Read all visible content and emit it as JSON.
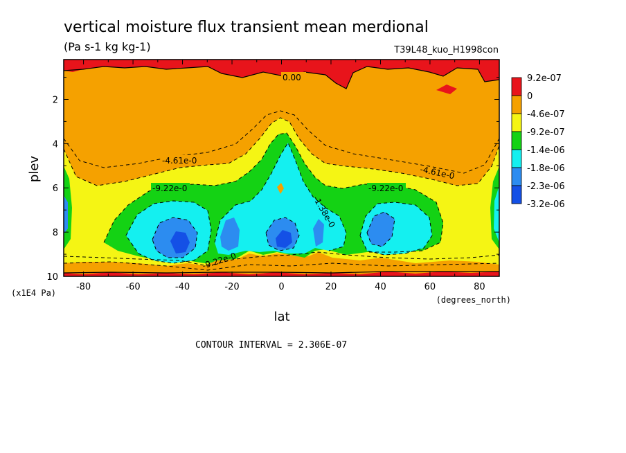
{
  "chart_data": {
    "type": "contour",
    "title": "vertical moisture flux transient mean merdional",
    "units": "(Pa s-1 kg kg-1)",
    "run_label": "T39L48_kuo_H1998con",
    "xlabel": "lat",
    "x_units_label": "(degrees_north)",
    "ylabel": "plev",
    "y_units_label": "(x1E4 Pa)",
    "xlim": [
      -88,
      88
    ],
    "ylim": [
      10,
      0.2
    ],
    "x_ticks": [
      "-80",
      "-60",
      "-40",
      "-20",
      "0",
      "20",
      "40",
      "60",
      "80"
    ],
    "x_tick_values": [
      -80,
      -60,
      -40,
      -20,
      0,
      20,
      40,
      60,
      80
    ],
    "y_ticks": [
      "2",
      "4",
      "6",
      "8",
      "10"
    ],
    "y_tick_values": [
      2,
      4,
      6,
      8,
      10
    ],
    "colorbar": {
      "labels": [
        "9.2e-07",
        "0",
        "-4.6e-07",
        "-9.2e-07",
        "-1.4e-06",
        "-1.8e-06",
        "-2.3e-06",
        "-3.2e-06"
      ],
      "colors": [
        "#e8141b",
        "#f5a100",
        "#f5f514",
        "#14d214",
        "#14f0f0",
        "#2c8cf0",
        "#1450e6"
      ]
    },
    "contour_labels": [
      "0.00",
      "-4.61e-0",
      "-4.61e-0",
      "-9.22e-0",
      "-9.22e-0",
      "-1.38e-0",
      "-9.22e-0"
    ],
    "contour_interval": "CONTOUR INTERVAL = 2.306E-07"
  }
}
